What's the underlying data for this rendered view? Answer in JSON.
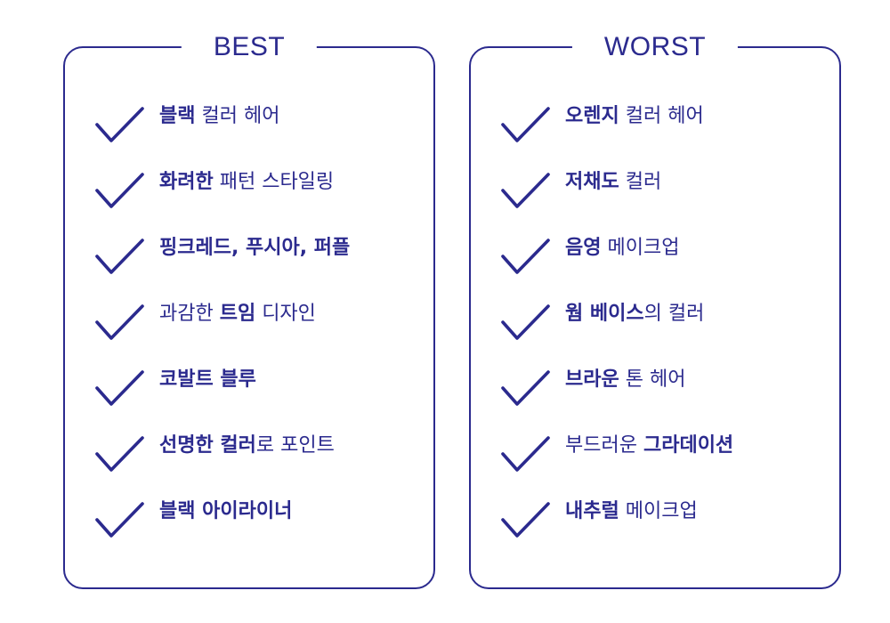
{
  "colors": {
    "accent": "#2b2a8e",
    "background": "#ffffff"
  },
  "best": {
    "title": "BEST",
    "items": [
      {
        "icon": "check-icon",
        "parts": [
          {
            "text": "블랙",
            "bold": true
          },
          {
            "text": " 컬러 헤어",
            "bold": false
          }
        ]
      },
      {
        "icon": "check-icon",
        "parts": [
          {
            "text": "화려한",
            "bold": true
          },
          {
            "text": " 패턴 스타일링",
            "bold": false
          }
        ]
      },
      {
        "icon": "check-icon",
        "parts": [
          {
            "text": "핑크레드, 푸시아, 퍼플",
            "bold": true
          }
        ]
      },
      {
        "icon": "check-icon",
        "parts": [
          {
            "text": "과감한 ",
            "bold": false
          },
          {
            "text": "트임",
            "bold": true
          },
          {
            "text": " 디자인",
            "bold": false
          }
        ]
      },
      {
        "icon": "check-icon",
        "parts": [
          {
            "text": "코발트 블루",
            "bold": true
          }
        ]
      },
      {
        "icon": "check-icon",
        "parts": [
          {
            "text": "선명한 컬러",
            "bold": true
          },
          {
            "text": "로 포인트",
            "bold": false
          }
        ]
      },
      {
        "icon": "check-icon",
        "parts": [
          {
            "text": "블랙 아이라이너",
            "bold": true
          }
        ]
      }
    ]
  },
  "worst": {
    "title": "WORST",
    "items": [
      {
        "icon": "check-icon",
        "parts": [
          {
            "text": "오렌지",
            "bold": true
          },
          {
            "text": " 컬러 헤어",
            "bold": false
          }
        ]
      },
      {
        "icon": "check-icon",
        "parts": [
          {
            "text": "저채도",
            "bold": true
          },
          {
            "text": " 컬러",
            "bold": false
          }
        ]
      },
      {
        "icon": "check-icon",
        "parts": [
          {
            "text": "음영",
            "bold": true
          },
          {
            "text": " 메이크업",
            "bold": false
          }
        ]
      },
      {
        "icon": "check-icon",
        "parts": [
          {
            "text": "웜 베이스",
            "bold": true
          },
          {
            "text": "의 컬러",
            "bold": false
          }
        ]
      },
      {
        "icon": "check-icon",
        "parts": [
          {
            "text": "브라운",
            "bold": true
          },
          {
            "text": " 톤 헤어",
            "bold": false
          }
        ]
      },
      {
        "icon": "check-icon",
        "parts": [
          {
            "text": "부드러운 ",
            "bold": false
          },
          {
            "text": "그라데이션",
            "bold": true
          }
        ]
      },
      {
        "icon": "check-icon",
        "parts": [
          {
            "text": "내추럴",
            "bold": true
          },
          {
            "text": " 메이크업",
            "bold": false
          }
        ]
      }
    ]
  }
}
